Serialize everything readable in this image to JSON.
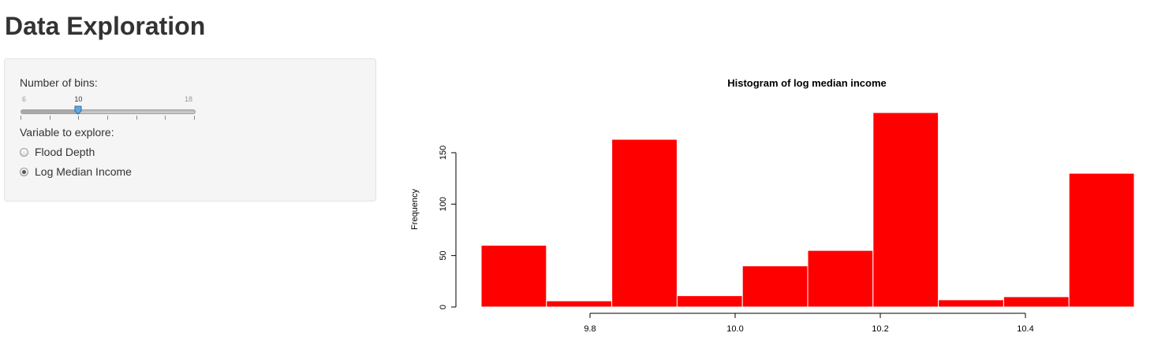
{
  "page": {
    "title": "Data Exploration"
  },
  "sidebar": {
    "bins_label": "Number of bins:",
    "slider": {
      "min": 6,
      "max": 18,
      "value": 10,
      "min_label": "6",
      "max_label": "18",
      "value_label": "10"
    },
    "variable_label": "Variable to explore:",
    "options": [
      {
        "label": "Flood Depth",
        "selected": false
      },
      {
        "label": "Log Median Income",
        "selected": true
      }
    ]
  },
  "colors": {
    "bar_fill": "#ff0000",
    "bar_border": "#ffffff",
    "slider_handle": "#5da8e3"
  },
  "chart_data": {
    "type": "bar",
    "title": "Histogram of log median income",
    "xlabel": "",
    "ylabel": "Frequency",
    "bins": [
      {
        "start": 9.65,
        "end": 9.74,
        "count": 60
      },
      {
        "start": 9.74,
        "end": 9.83,
        "count": 6
      },
      {
        "start": 9.83,
        "end": 9.92,
        "count": 163
      },
      {
        "start": 9.92,
        "end": 10.01,
        "count": 11
      },
      {
        "start": 10.01,
        "end": 10.1,
        "count": 40
      },
      {
        "start": 10.1,
        "end": 10.19,
        "count": 55
      },
      {
        "start": 10.19,
        "end": 10.28,
        "count": 189
      },
      {
        "start": 10.28,
        "end": 10.37,
        "count": 7
      },
      {
        "start": 10.37,
        "end": 10.46,
        "count": 10
      },
      {
        "start": 10.46,
        "end": 10.55,
        "count": 130
      }
    ],
    "xlim": [
      9.65,
      10.55
    ],
    "ylim": [
      0,
      189
    ],
    "xticks": [
      9.8,
      10.0,
      10.2,
      10.4
    ],
    "xtick_labels": [
      "9.8",
      "10.0",
      "10.2",
      "10.4"
    ],
    "yticks": [
      0,
      50,
      100,
      150
    ],
    "ytick_labels": [
      "0",
      "50",
      "100",
      "150"
    ],
    "grid": false
  }
}
